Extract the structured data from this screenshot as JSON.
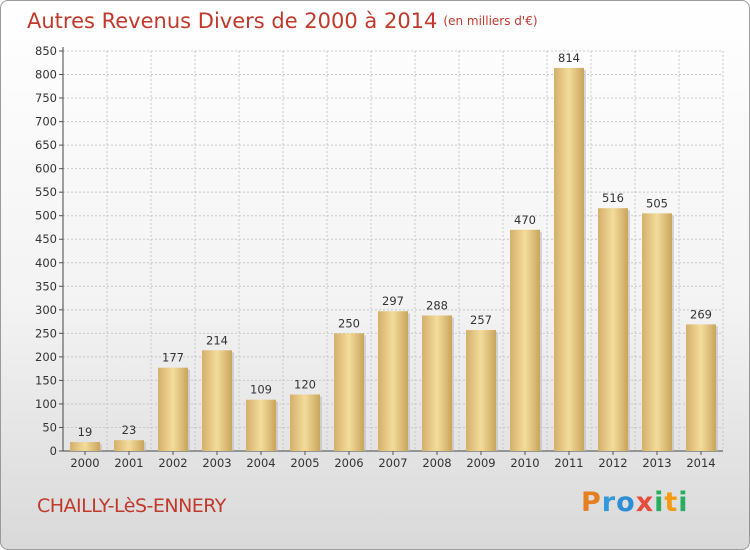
{
  "header": {
    "title": "Autres Revenus Divers de 2000 à 2014",
    "unit": "(en milliers d'€)"
  },
  "footer": {
    "commune": "CHAILLY-LèS-ENNERY",
    "logo_letters": [
      "P",
      "r",
      "o",
      "x",
      "i",
      "t",
      "i"
    ],
    "logo_colors": [
      "#e67e22",
      "#3498db",
      "#2c8fd6",
      "#e74c3c",
      "#27ae60",
      "#f39c12",
      "#27ae60"
    ]
  },
  "chart_data": {
    "type": "bar",
    "title": "Autres Revenus Divers de 2000 à 2014",
    "subtitle": "(en milliers d'€)",
    "categories": [
      "2000",
      "2001",
      "2002",
      "2003",
      "2004",
      "2005",
      "2006",
      "2007",
      "2008",
      "2009",
      "2010",
      "2011",
      "2012",
      "2013",
      "2014"
    ],
    "values": [
      19,
      23,
      177,
      214,
      109,
      120,
      250,
      297,
      288,
      257,
      470,
      814,
      516,
      505,
      269
    ],
    "ylim": [
      0,
      850
    ],
    "yticks": [
      0,
      50,
      100,
      150,
      200,
      250,
      300,
      350,
      400,
      450,
      500,
      550,
      600,
      650,
      700,
      750,
      800,
      850
    ],
    "grid": true,
    "bar_color": "#e6c77d"
  }
}
